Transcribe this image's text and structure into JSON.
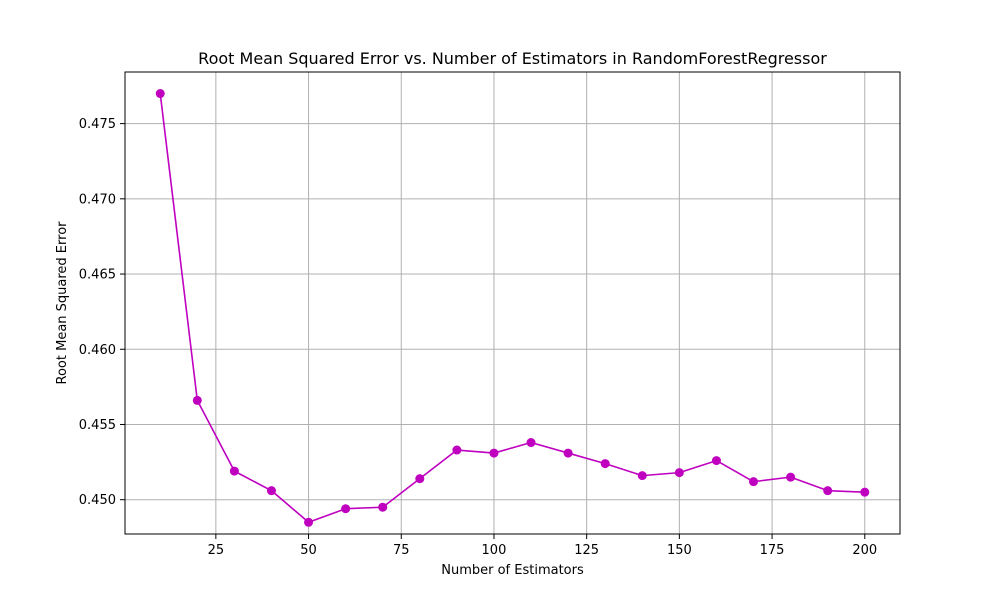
{
  "chart_data": {
    "type": "line",
    "title": "Root Mean Squared Error vs. Number of Estimators in RandomForestRegressor",
    "xlabel": "Number of Estimators",
    "ylabel": "Root Mean Squared Error",
    "x": [
      10,
      20,
      30,
      40,
      50,
      60,
      70,
      80,
      90,
      100,
      110,
      120,
      130,
      140,
      150,
      160,
      170,
      180,
      190,
      200
    ],
    "series": [
      {
        "values": [
          0.477,
          0.4566,
          0.4519,
          0.4506,
          0.4485,
          0.4494,
          0.4495,
          0.4514,
          0.4533,
          0.4531,
          0.4538,
          0.4531,
          0.4524,
          0.4516,
          0.4518,
          0.4526,
          0.4512,
          0.4515,
          0.4506,
          0.4505
        ],
        "color": "#bf00bf",
        "marker": "circle"
      }
    ],
    "xlim": [
      0.5,
      209.5
    ],
    "ylim": [
      0.44772,
      0.47843
    ],
    "x_ticks": [
      25,
      50,
      75,
      100,
      125,
      150,
      175,
      200
    ],
    "y_ticks": [
      0.45,
      0.455,
      0.46,
      0.465,
      0.47,
      0.475
    ],
    "x_tick_labels": [
      "25",
      "50",
      "75",
      "100",
      "125",
      "150",
      "175",
      "200"
    ],
    "y_tick_labels": [
      "0.450",
      "0.455",
      "0.460",
      "0.465",
      "0.470",
      "0.475"
    ],
    "grid": true,
    "grid_color": "#b0b0b0",
    "legend": "none"
  }
}
